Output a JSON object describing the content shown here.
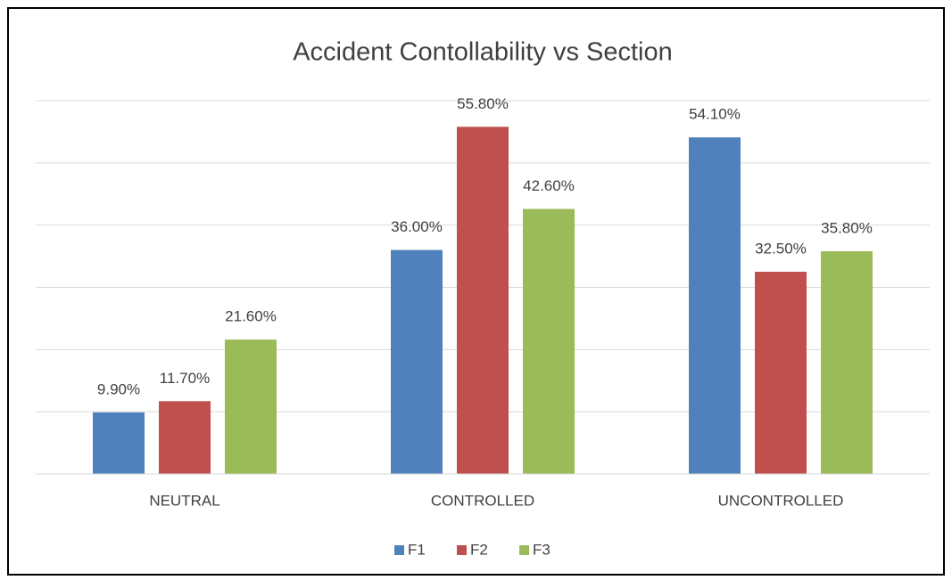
{
  "chart_data": {
    "type": "bar",
    "title": "Accident Contollability vs Section",
    "categories": [
      "NEUTRAL",
      "CONTROLLED",
      "UNCONTROLLED"
    ],
    "series": [
      {
        "name": "F1",
        "color": "#4f81bd",
        "values": [
          9.9,
          36.0,
          54.1
        ],
        "value_labels": [
          "9.90%",
          "36.00%",
          "54.10%"
        ]
      },
      {
        "name": "F2",
        "color": "#c0504d",
        "values": [
          11.7,
          55.8,
          32.5
        ],
        "value_labels": [
          "11.70%",
          "55.80%",
          "32.50%"
        ]
      },
      {
        "name": "F3",
        "color": "#9bbb59",
        "values": [
          21.6,
          42.6,
          35.8
        ],
        "value_labels": [
          "21.60%",
          "42.60%",
          "35.80%"
        ]
      }
    ],
    "ylim": [
      0,
      60
    ],
    "yticks": [
      0,
      10,
      20,
      30,
      40,
      50,
      60
    ],
    "grid": true,
    "legend": "bottom"
  }
}
